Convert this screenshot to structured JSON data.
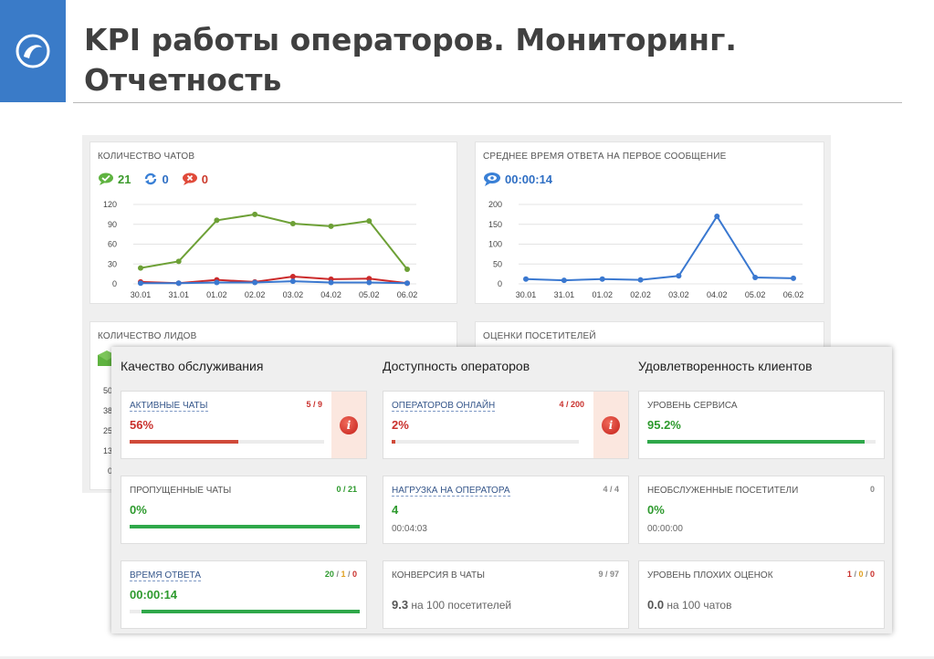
{
  "title": {
    "line1": "KPI работы операторов. Мониторинг.",
    "line2": "Отчетность"
  },
  "colors": {
    "brand": "#3a7bc8",
    "green": "#2fa84a",
    "red": "#c9302c",
    "blue": "#3a78d0",
    "olive": "#6da036"
  },
  "panels": {
    "chats": {
      "title": "Количество чатов",
      "stats": [
        {
          "icon": "chat-bubble-icon",
          "value": "21",
          "color": "#3c9a2c"
        },
        {
          "icon": "refresh-icon",
          "value": "0",
          "color": "#2f6fc4"
        },
        {
          "icon": "missed-chat-icon",
          "value": "0",
          "color": "#cc3a2c"
        }
      ]
    },
    "response": {
      "title": "Среднее время ответа на первое сообщение",
      "stat": {
        "icon": "eye-bubble-icon",
        "value": "00:00:14"
      }
    },
    "leads": {
      "title": "Количество лидов",
      "ytick_labels": [
        "50",
        "38",
        "25",
        "13",
        "0"
      ]
    },
    "ratings": {
      "title": "Оценки посетителей"
    }
  },
  "chart_data": [
    {
      "type": "line",
      "x": [
        "30.01",
        "31.01",
        "01.02",
        "02.02",
        "03.02",
        "04.02",
        "05.02",
        "06.02"
      ],
      "yticks": [
        0,
        30,
        60,
        90,
        120
      ],
      "ylim": [
        0,
        120
      ],
      "series": [
        {
          "color": "#6da036",
          "values": [
            24,
            34,
            96,
            105,
            91,
            87,
            95,
            22
          ]
        },
        {
          "color": "#cc2a2a",
          "values": [
            3,
            1,
            6,
            3,
            11,
            7,
            8,
            1
          ]
        },
        {
          "color": "#3a78d0",
          "values": [
            1,
            1,
            2,
            2,
            4,
            2,
            2,
            1
          ]
        }
      ]
    },
    {
      "type": "line",
      "x": [
        "30.01",
        "31.01",
        "01.02",
        "02.02",
        "03.02",
        "04.02",
        "05.02",
        "06.02"
      ],
      "yticks": [
        0,
        50,
        100,
        150,
        200
      ],
      "ylim": [
        0,
        200
      ],
      "series": [
        {
          "color": "#3a78d0",
          "values": [
            12,
            9,
            12,
            10,
            20,
            170,
            16,
            14
          ]
        }
      ]
    }
  ],
  "kpi": {
    "columns": [
      "Качество обслуживания",
      "Доступность операторов",
      "Удовлетворенность клиентов"
    ],
    "cards": {
      "active_chats": {
        "label": "Активные чаты",
        "count": "5 / 9",
        "value": "56%",
        "progress": 0.56
      },
      "operators_online": {
        "label": "Операторов онлайн",
        "count": "4 / 200",
        "value": "2%",
        "progress": 0.02
      },
      "service_level": {
        "label": "Уровень сервиса",
        "value": "95.2%",
        "progress": 0.952
      },
      "missed_chats": {
        "label": "Пропущенные чаты",
        "count": "0 / 21",
        "value": "0%",
        "progress": 1.0
      },
      "operator_load": {
        "label": "Нагрузка на оператора",
        "count": "4 / 4",
        "value": "4",
        "sub": "00:04:03"
      },
      "unserved_visitors": {
        "label": "Необслуженные посетители",
        "count": "0",
        "value": "0%",
        "sub": "00:00:00"
      },
      "response_time": {
        "label": "Время ответа",
        "count_parts": [
          "20",
          "1",
          "0"
        ],
        "value": "00:00:14",
        "progress": 0.95
      },
      "chat_conversion": {
        "label": "Конверсия в чаты",
        "count": "9 / 97",
        "value": "9.3",
        "note": "на 100 посетителей"
      },
      "bad_ratings": {
        "label": "Уровень плохих оценок",
        "count_parts": [
          "1",
          "0",
          "0"
        ],
        "value": "0.0",
        "note": "на 100 чатов"
      }
    }
  }
}
